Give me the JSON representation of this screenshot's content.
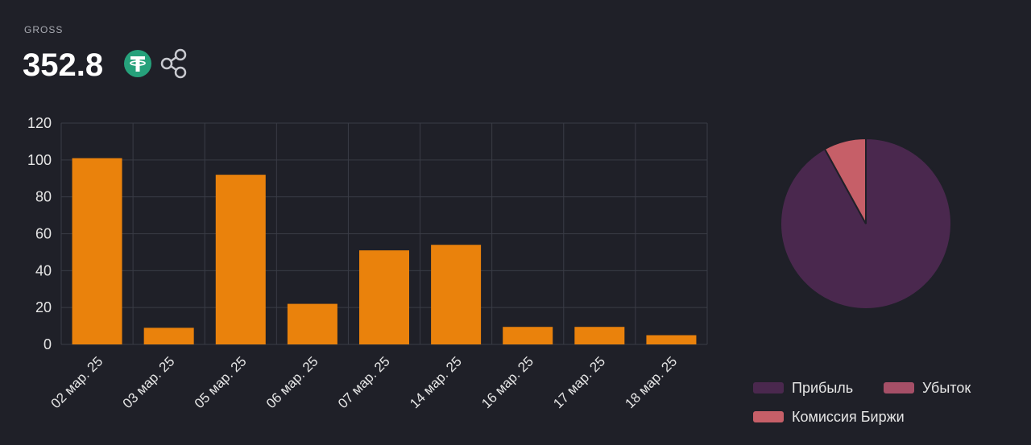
{
  "header": {
    "label": "GROSS",
    "value": "352.8"
  },
  "chart_data": [
    {
      "type": "bar",
      "categories": [
        "02 мар. 25",
        "03 мар. 25",
        "05 мар. 25",
        "06 мар. 25",
        "07 мар. 25",
        "14 мар. 25",
        "16 мар. 25",
        "17 мар. 25",
        "18 мар. 25"
      ],
      "values": [
        101,
        9,
        92,
        22,
        51,
        54,
        9.5,
        9.5,
        5
      ],
      "color": "#ea820c",
      "ylim": [
        0,
        120
      ],
      "yticks": [
        0,
        20,
        40,
        60,
        80,
        100,
        120
      ],
      "grid": true
    },
    {
      "type": "pie",
      "categories": [
        "Прибыль",
        "Убыток",
        "Комиссия Биржи"
      ],
      "values": [
        92,
        0,
        8
      ],
      "colors": [
        "#4a284e",
        "#a54f67",
        "#c65f68"
      ]
    }
  ]
}
